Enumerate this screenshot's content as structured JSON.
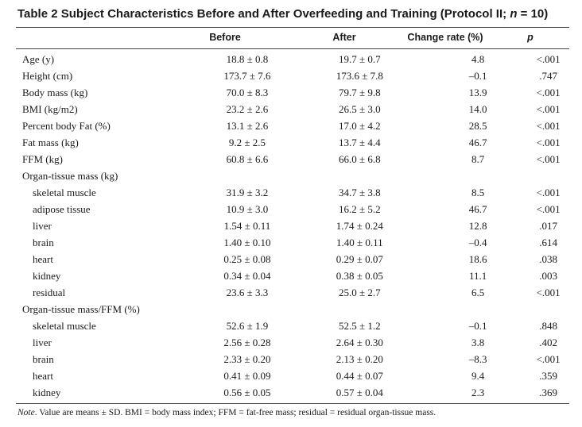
{
  "title": {
    "prefix": "Table 2  Subject Characteristics Before and After Overfeeding and Training (Protocol II; ",
    "n_var": "n",
    "suffix": " = 10)"
  },
  "columns": {
    "before": "Before",
    "after": "After",
    "change": "Change rate (%)",
    "p": "p"
  },
  "rows": [
    {
      "label": "Age (y)",
      "before": "18.8 ± 0.8",
      "after": "19.7  ± 0.7",
      "change": "4.8",
      "p": "<.001"
    },
    {
      "label": "Height (cm)",
      "before": "173.7  ± 7.6",
      "after": "173.6  ± 7.8",
      "change": "–0.1",
      "p": ".747"
    },
    {
      "label": "Body mass (kg)",
      "before": "70.0  ± 8.3",
      "after": "79.7  ± 9.8",
      "change": "13.9",
      "p": "<.001"
    },
    {
      "label": "BMI (kg/m2)",
      "before": "23.2  ± 2.6",
      "after": "26.5  ± 3.0",
      "change": "14.0",
      "p": "<.001"
    },
    {
      "label": "Percent body Fat (%)",
      "before": "13.1  ± 2.6",
      "after": "17.0  ± 4.2",
      "change": "28.5",
      "p": "<.001"
    },
    {
      "label": "Fat mass (kg)",
      "before": "9.2  ± 2.5",
      "after": "13.7  ± 4.4",
      "change": "46.7",
      "p": "<.001"
    },
    {
      "label": "FFM (kg)",
      "before": "60.8  ± 6.6",
      "after": "66.0  ± 6.8",
      "change": "8.7",
      "p": "<.001"
    },
    {
      "label": "Organ-tissue mass (kg)",
      "before": "",
      "after": "",
      "change": "",
      "p": ""
    },
    {
      "label": "skeletal muscle",
      "sub": true,
      "before": "31.9  ± 3.2",
      "after": "34.7  ± 3.8",
      "change": "8.5",
      "p": "<.001"
    },
    {
      "label": "adipose tissue",
      "sub": true,
      "before": "10.9 ± 3.0",
      "after": "16.2  ± 5.2",
      "change": "46.7",
      "p": "<.001"
    },
    {
      "label": "liver",
      "sub": true,
      "before": "1.54  ± 0.11",
      "after": "1.74  ± 0.24",
      "change": "12.8",
      "p": ".017"
    },
    {
      "label": "brain",
      "sub": true,
      "before": "1.40  ± 0.10",
      "after": "1.40  ± 0.11",
      "change": "–0.4",
      "p": ".614"
    },
    {
      "label": "heart",
      "sub": true,
      "before": "0.25  ± 0.08",
      "after": "0.29 ± 0.07",
      "change": "18.6",
      "p": ".038"
    },
    {
      "label": "kidney",
      "sub": true,
      "before": "0.34  ± 0.04",
      "after": "0.38  ± 0.05",
      "change": "11.1",
      "p": ".003"
    },
    {
      "label": "residual",
      "sub": true,
      "before": "23.6  ± 3.3",
      "after": "25.0  ± 2.7",
      "change": "6.5",
      "p": "<.001"
    },
    {
      "label": "Organ-tissue mass/FFM (%)",
      "before": "",
      "after": "",
      "change": "",
      "p": ""
    },
    {
      "label": "skeletal muscle",
      "sub": true,
      "before": "52.6  ± 1.9",
      "after": "52.5  ± 1.2",
      "change": "–0.1",
      "p": ".848"
    },
    {
      "label": "liver",
      "sub": true,
      "before": "2.56  ± 0.28",
      "after": "2.64 ± 0.30",
      "change": "3.8",
      "p": ".402"
    },
    {
      "label": "brain",
      "sub": true,
      "before": "2.33  ± 0.20",
      "after": "2.13  ± 0.20",
      "change": "–8.3",
      "p": "<.001"
    },
    {
      "label": "heart",
      "sub": true,
      "before": "0.41  ± 0.09",
      "after": "0.44  ± 0.07",
      "change": "9.4",
      "p": ".359"
    },
    {
      "label": "kidney",
      "sub": true,
      "before": "0.56  ± 0.05",
      "after": "0.57  ± 0.04",
      "change": "2.3",
      "p": ".369"
    }
  ],
  "note": {
    "label": "Note",
    "text": ". Value are means ± SD. BMI = body mass index; FFM = fat-free mass; residual = residual organ-tissue mass."
  }
}
